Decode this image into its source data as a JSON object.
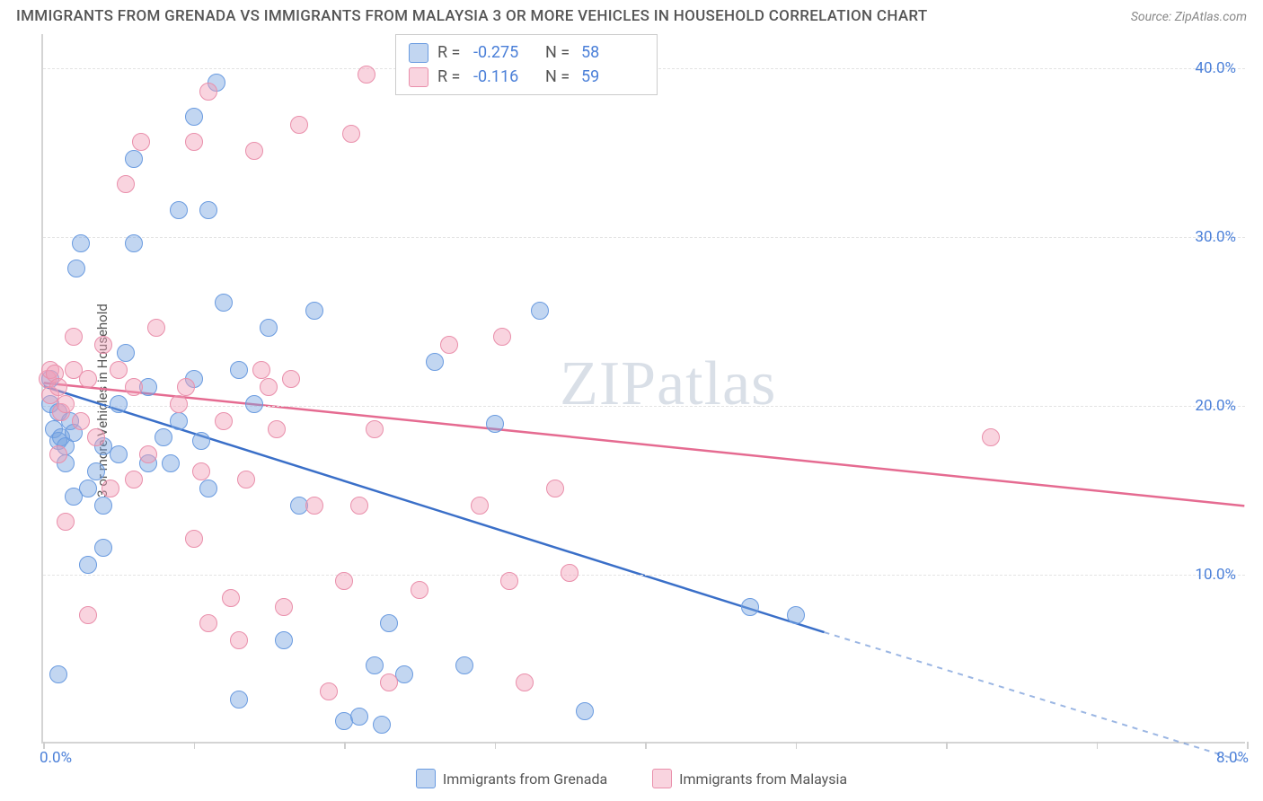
{
  "title": "IMMIGRANTS FROM GRENADA VS IMMIGRANTS FROM MALAYSIA 3 OR MORE VEHICLES IN HOUSEHOLD CORRELATION CHART",
  "source": "Source: ZipAtlas.com",
  "ylabel": "3 or more Vehicles in Household",
  "watermark_a": "ZIP",
  "watermark_b": "atlas",
  "chart": {
    "type": "scatter",
    "xlim": [
      0.0,
      8.0
    ],
    "ylim": [
      0.0,
      42.0
    ],
    "yticks": [
      10.0,
      20.0,
      30.0,
      40.0
    ],
    "ytick_labels": [
      "10.0%",
      "20.0%",
      "30.0%",
      "40.0%"
    ],
    "xticks": [
      0,
      1,
      2,
      3,
      4,
      5,
      6,
      7,
      8
    ],
    "xlabel_min": "0.0%",
    "xlabel_max": "8.0%",
    "grid_color": "#e3e3e3",
    "border_color": "#d4d4d4",
    "axis_label_color": "#4a7fd8",
    "background_color": "#ffffff",
    "point_radius": 10
  },
  "series": [
    {
      "name": "Immigrants from Grenada",
      "fill": "rgba(120,165,225,0.45)",
      "stroke": "#6a9be0",
      "line_color": "#3a6fc8",
      "r_label": "R =",
      "r_value": "-0.275",
      "n_label": "N =",
      "n_value": "58",
      "trend": {
        "x1": 0.0,
        "y1": 21.1,
        "x2": 5.2,
        "y2": 6.5,
        "x2_ext": 8.0,
        "y2_ext": -1.2
      },
      "points": [
        [
          0.05,
          21.5
        ],
        [
          0.05,
          20
        ],
        [
          0.07,
          18.5
        ],
        [
          0.1,
          17.8
        ],
        [
          0.1,
          19.5
        ],
        [
          0.12,
          18
        ],
        [
          0.15,
          16.5
        ],
        [
          0.15,
          17.5
        ],
        [
          0.18,
          19
        ],
        [
          0.2,
          18.3
        ],
        [
          0.2,
          14.5
        ],
        [
          0.22,
          28
        ],
        [
          0.25,
          29.5
        ],
        [
          0.1,
          4.0
        ],
        [
          0.3,
          10.5
        ],
        [
          0.3,
          15
        ],
        [
          0.35,
          16
        ],
        [
          0.4,
          17.5
        ],
        [
          0.4,
          14
        ],
        [
          0.5,
          17
        ],
        [
          0.5,
          20
        ],
        [
          0.55,
          23
        ],
        [
          0.6,
          29.5
        ],
        [
          0.6,
          34.5
        ],
        [
          0.7,
          16.5
        ],
        [
          0.7,
          21
        ],
        [
          0.8,
          18
        ],
        [
          0.85,
          16.5
        ],
        [
          0.9,
          19
        ],
        [
          0.9,
          31.5
        ],
        [
          1.0,
          37
        ],
        [
          1.0,
          21.5
        ],
        [
          1.05,
          17.8
        ],
        [
          1.1,
          15
        ],
        [
          1.1,
          31.5
        ],
        [
          1.15,
          39
        ],
        [
          1.2,
          26
        ],
        [
          1.3,
          22
        ],
        [
          1.3,
          2.5
        ],
        [
          1.4,
          20
        ],
        [
          1.5,
          24.5
        ],
        [
          1.6,
          6
        ],
        [
          1.7,
          14
        ],
        [
          1.8,
          25.5
        ],
        [
          2.0,
          1.2
        ],
        [
          2.1,
          1.5
        ],
        [
          2.2,
          4.5
        ],
        [
          2.25,
          1
        ],
        [
          2.3,
          7
        ],
        [
          2.4,
          4
        ],
        [
          2.6,
          22.5
        ],
        [
          2.8,
          4.5
        ],
        [
          3.0,
          18.8
        ],
        [
          3.3,
          25.5
        ],
        [
          3.6,
          1.8
        ],
        [
          5.0,
          7.5
        ],
        [
          4.7,
          8
        ],
        [
          0.4,
          11.5
        ]
      ]
    },
    {
      "name": "Immigrants from Malaysia",
      "fill": "rgba(242,160,185,0.45)",
      "stroke": "#e98fab",
      "line_color": "#e56b91",
      "r_label": "R =",
      "r_value": "-0.116",
      "n_label": "N =",
      "n_value": "59",
      "trend": {
        "x1": 0.0,
        "y1": 21.3,
        "x2": 8.0,
        "y2": 14.0
      },
      "points": [
        [
          0.03,
          21.5
        ],
        [
          0.05,
          22
        ],
        [
          0.05,
          20.5
        ],
        [
          0.08,
          21.8
        ],
        [
          0.1,
          21
        ],
        [
          0.1,
          17
        ],
        [
          0.12,
          19.5
        ],
        [
          0.15,
          20
        ],
        [
          0.15,
          13
        ],
        [
          0.2,
          22
        ],
        [
          0.2,
          24
        ],
        [
          0.25,
          19
        ],
        [
          0.3,
          21.5
        ],
        [
          0.35,
          18
        ],
        [
          0.4,
          23.5
        ],
        [
          0.45,
          15
        ],
        [
          0.5,
          22
        ],
        [
          0.55,
          33
        ],
        [
          0.6,
          21
        ],
        [
          0.65,
          35.5
        ],
        [
          0.7,
          17
        ],
        [
          0.75,
          24.5
        ],
        [
          0.9,
          20
        ],
        [
          0.95,
          21
        ],
        [
          1.0,
          35.5
        ],
        [
          1.05,
          16
        ],
        [
          1.1,
          7
        ],
        [
          1.1,
          38.5
        ],
        [
          1.2,
          19
        ],
        [
          1.25,
          8.5
        ],
        [
          1.3,
          6
        ],
        [
          1.35,
          15.5
        ],
        [
          1.4,
          35
        ],
        [
          1.45,
          22
        ],
        [
          1.5,
          21
        ],
        [
          1.55,
          18.5
        ],
        [
          1.6,
          8
        ],
        [
          1.7,
          36.5
        ],
        [
          1.8,
          14
        ],
        [
          1.9,
          3
        ],
        [
          2.0,
          9.5
        ],
        [
          2.05,
          36
        ],
        [
          2.1,
          14
        ],
        [
          2.2,
          18.5
        ],
        [
          2.15,
          39.5
        ],
        [
          2.3,
          3.5
        ],
        [
          2.5,
          9
        ],
        [
          2.7,
          23.5
        ],
        [
          2.9,
          14
        ],
        [
          3.05,
          24
        ],
        [
          3.1,
          9.5
        ],
        [
          3.2,
          3.5
        ],
        [
          3.5,
          10
        ],
        [
          3.4,
          15
        ],
        [
          6.3,
          18
        ],
        [
          0.3,
          7.5
        ],
        [
          0.6,
          15.5
        ],
        [
          1.0,
          12
        ],
        [
          1.65,
          21.5
        ]
      ]
    }
  ]
}
